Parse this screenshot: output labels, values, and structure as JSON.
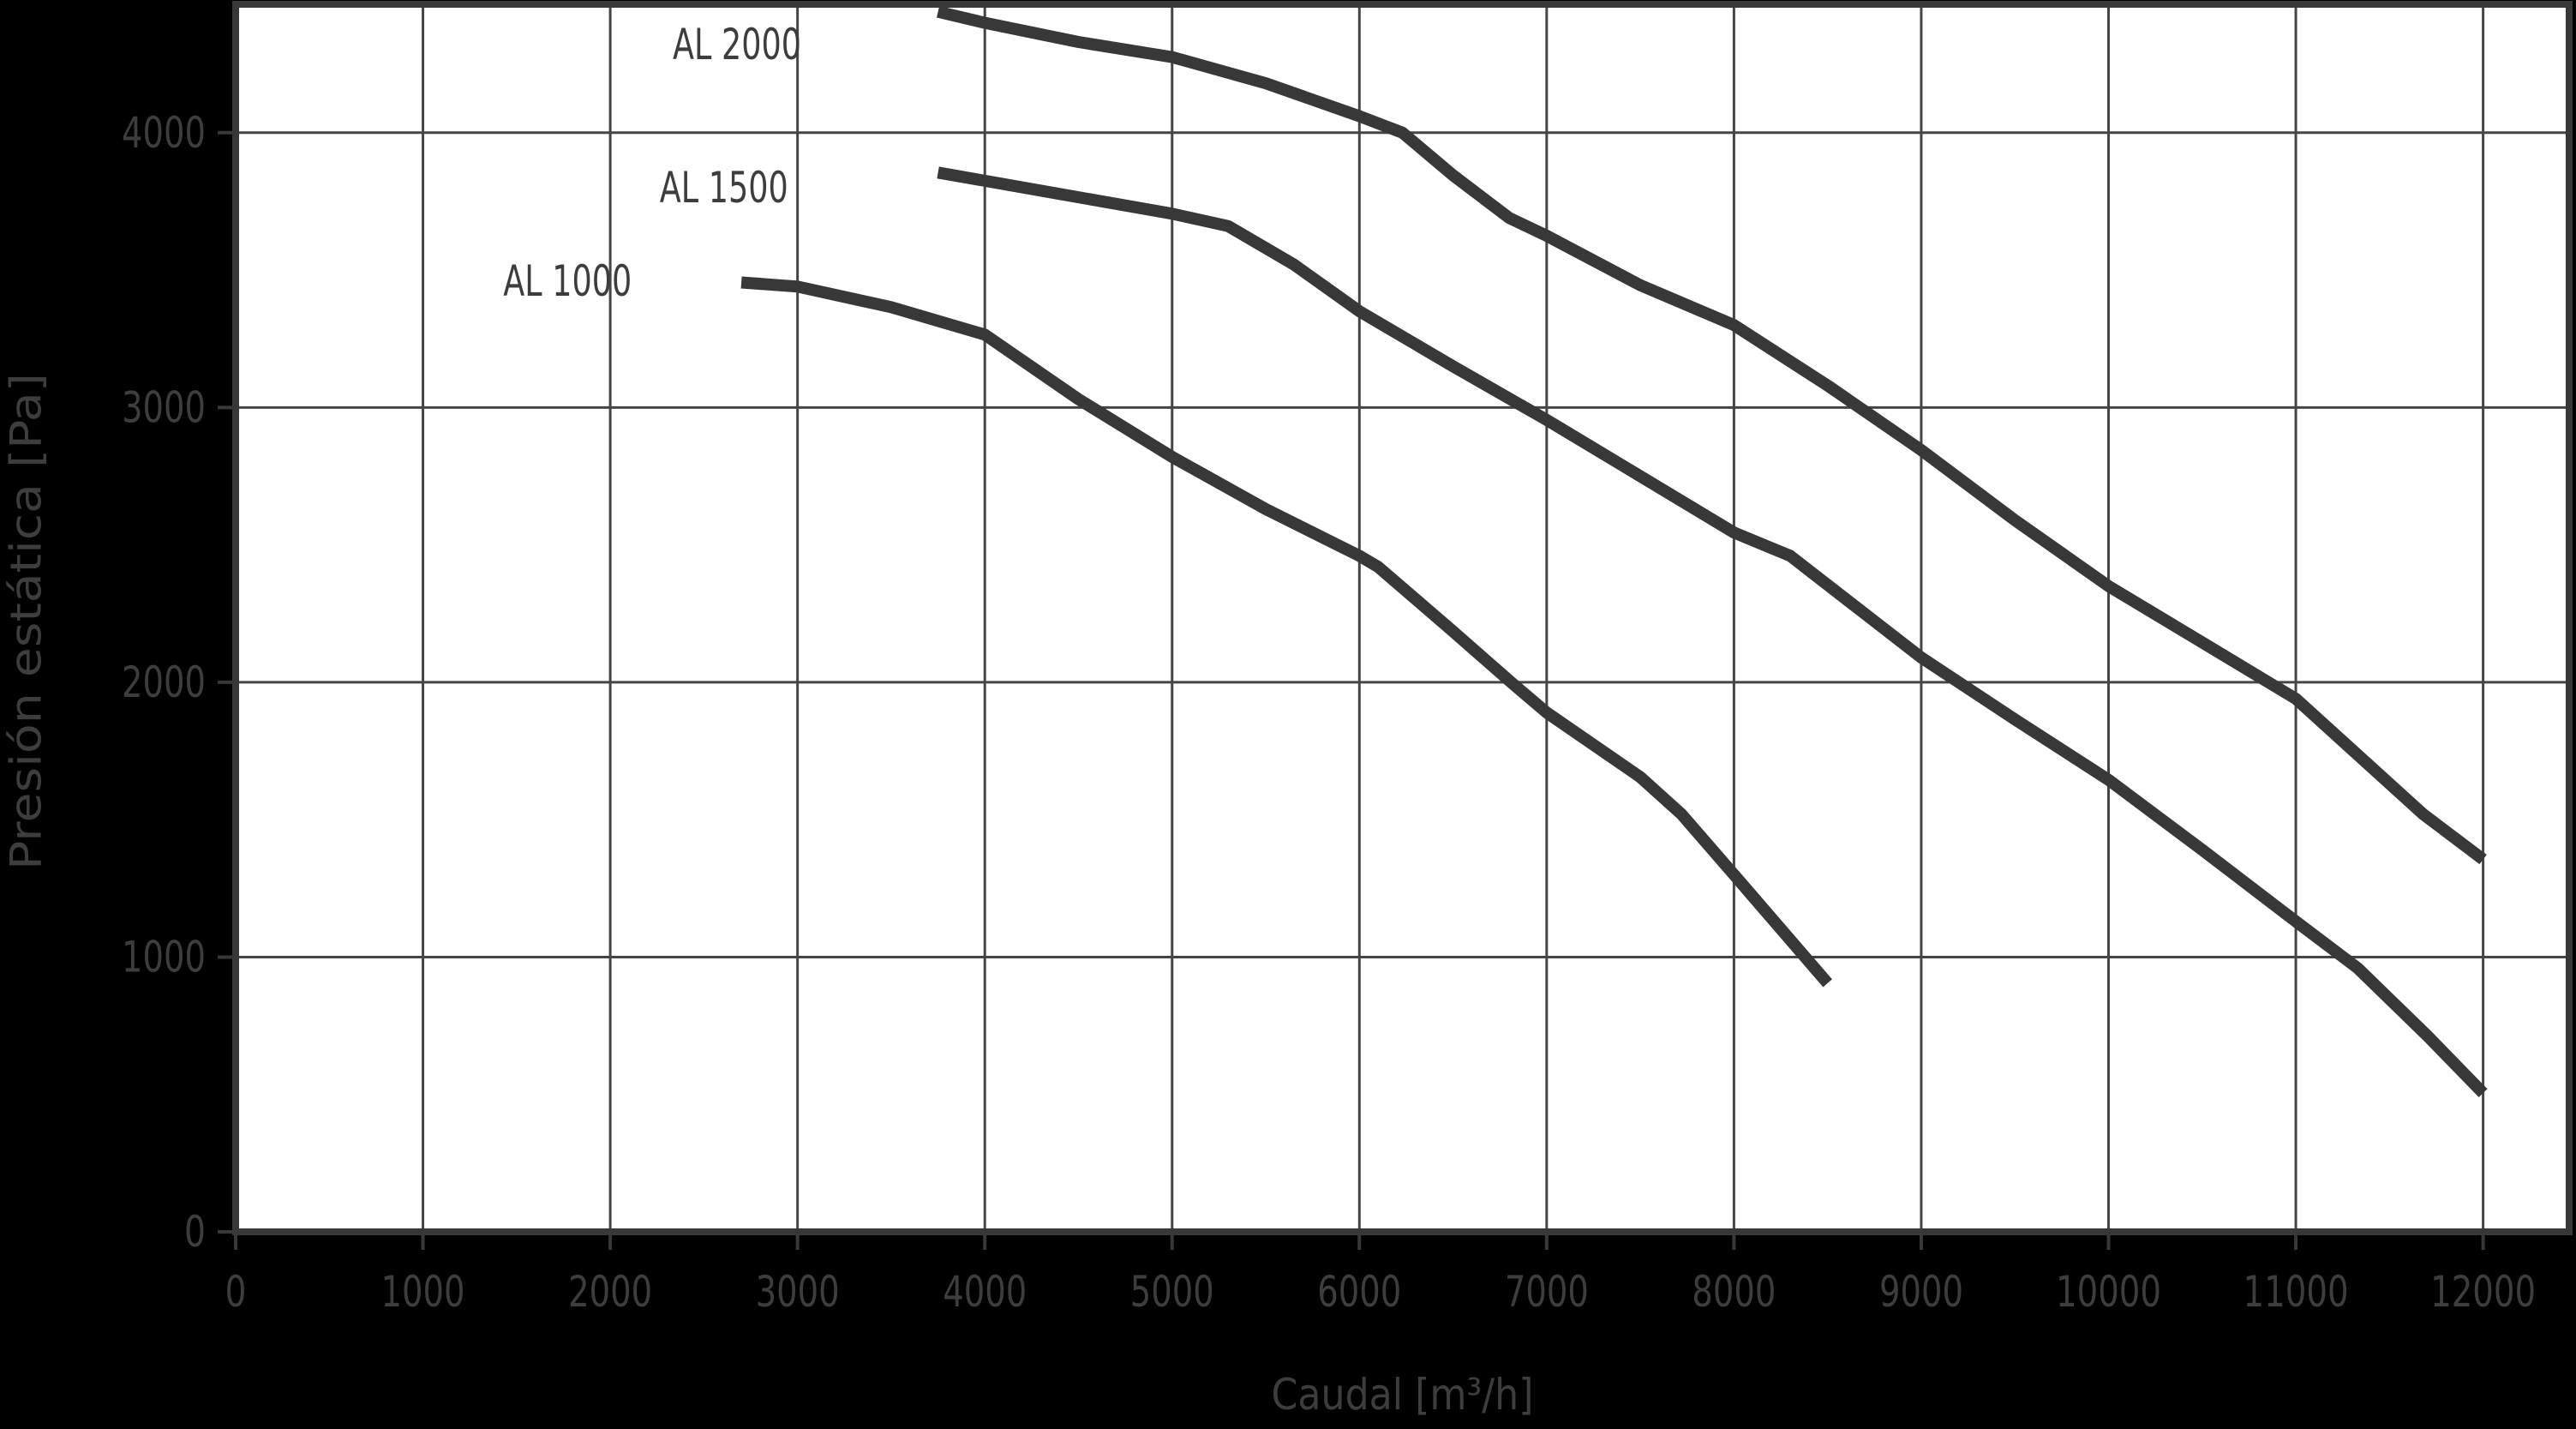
{
  "chart_data": {
    "type": "line",
    "title": "",
    "xlabel": "Caudal [m³/h]",
    "ylabel": "Presión estática [Pa]",
    "x_ticks": [
      0,
      1000,
      2000,
      3000,
      4000,
      5000,
      6000,
      7000,
      8000,
      9000,
      10000,
      11000,
      12000
    ],
    "y_ticks": [
      0,
      1000,
      2000,
      3000,
      4000
    ],
    "xlim": [
      0,
      12460
    ],
    "ylim": [
      0,
      4467
    ],
    "grid": true,
    "legend_position": "curve-labels-inline",
    "colors": {
      "background": "#000000",
      "plot_background": "#ffffff",
      "ink": "#383838",
      "grid": "#454545",
      "text": "#3d3d3d"
    },
    "series": [
      {
        "name": "AL 2000",
        "label_anchor": {
          "x": 3020,
          "y": 4320
        },
        "points": [
          [
            3750,
            4440
          ],
          [
            4000,
            4400
          ],
          [
            4500,
            4330
          ],
          [
            5000,
            4275
          ],
          [
            5500,
            4180
          ],
          [
            6000,
            4060
          ],
          [
            6230,
            4000
          ],
          [
            6500,
            3845
          ],
          [
            6800,
            3690
          ],
          [
            7000,
            3625
          ],
          [
            7500,
            3445
          ],
          [
            8000,
            3300
          ],
          [
            8500,
            3080
          ],
          [
            9000,
            2845
          ],
          [
            9500,
            2590
          ],
          [
            10000,
            2350
          ],
          [
            10500,
            2145
          ],
          [
            11000,
            1940
          ],
          [
            11680,
            1520
          ],
          [
            12000,
            1355
          ]
        ]
      },
      {
        "name": "AL 1500",
        "label_anchor": {
          "x": 2950,
          "y": 3800
        },
        "points": [
          [
            3750,
            3855
          ],
          [
            4000,
            3825
          ],
          [
            4500,
            3765
          ],
          [
            5000,
            3705
          ],
          [
            5300,
            3660
          ],
          [
            5650,
            3520
          ],
          [
            6000,
            3350
          ],
          [
            6500,
            3150
          ],
          [
            7000,
            2955
          ],
          [
            7500,
            2750
          ],
          [
            8000,
            2545
          ],
          [
            8300,
            2460
          ],
          [
            9000,
            2090
          ],
          [
            9500,
            1865
          ],
          [
            10000,
            1645
          ],
          [
            10500,
            1390
          ],
          [
            11000,
            1130
          ],
          [
            11330,
            960
          ],
          [
            11700,
            715
          ],
          [
            12000,
            505
          ]
        ]
      },
      {
        "name": "AL 1000",
        "label_anchor": {
          "x": 2115,
          "y": 3460
        },
        "points": [
          [
            2700,
            3455
          ],
          [
            3000,
            3440
          ],
          [
            3500,
            3365
          ],
          [
            4000,
            3265
          ],
          [
            4500,
            3030
          ],
          [
            5000,
            2820
          ],
          [
            5500,
            2630
          ],
          [
            6000,
            2460
          ],
          [
            6100,
            2420
          ],
          [
            6500,
            2185
          ],
          [
            6810,
            2000
          ],
          [
            7000,
            1890
          ],
          [
            7500,
            1655
          ],
          [
            7720,
            1520
          ],
          [
            8000,
            1300
          ],
          [
            8500,
            905
          ]
        ]
      }
    ]
  }
}
